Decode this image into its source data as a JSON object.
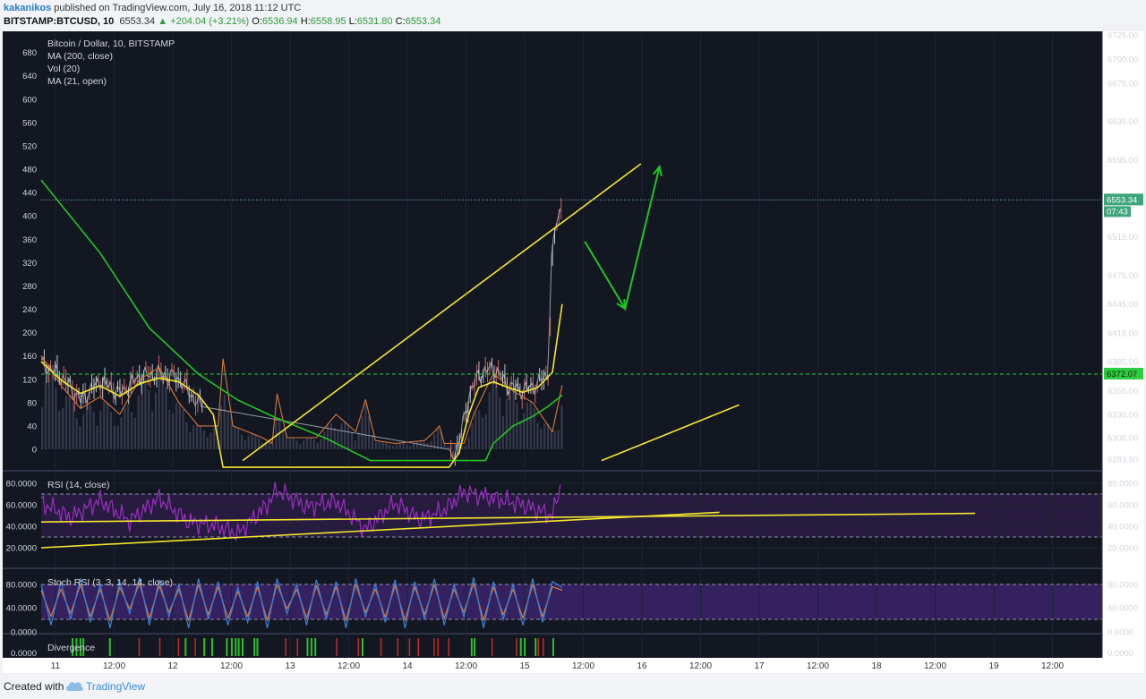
{
  "header": {
    "author": "kakanikos",
    "published_text": "published on TradingView.com, July 16, 2018 11:12 UTC",
    "symbol": "BITSTAMP:BTCUSD, 10",
    "price": "6553.34",
    "change": "▲ +204.04 (+3.21%)",
    "o_label": "O:",
    "o_value": "6536.94",
    "h_label": "H:",
    "h_value": "6558.95",
    "l_label": "L:",
    "l_value": "6531.80",
    "c_label": "C:",
    "c_value": "6553.34"
  },
  "legend": {
    "title": "Bitcoin / Dollar, 10, BITSTAMP",
    "ma200": "MA (200, close)",
    "vol": "Vol (20)",
    "ma21": "MA (21, open)"
  },
  "panes": {
    "rsi_label": "RSI (14, close)",
    "stoch_label": "Stoch RSI (3, 3, 14, 14, close)",
    "divergence_label": "Divergence"
  },
  "footer": {
    "created": "Created with",
    "brand": "TradingView"
  },
  "colors": {
    "background": "#131722",
    "yellow": "#f5e72c",
    "green": "#21c521",
    "orange": "#d6793a",
    "purple": "#9b2fc0",
    "blue": "#3a7fd0",
    "price_tag": "#3da57a",
    "level_tag": "#2ecc40"
  },
  "chart_data": [
    {
      "type": "line",
      "title": "Bitcoin / Dollar, 10, BITSTAMP",
      "x_ticks": [
        "11",
        "12:00",
        "12",
        "12:00",
        "13",
        "12:00",
        "14",
        "12:00",
        "15",
        "12:00",
        "16",
        "12:00",
        "17",
        "12:00",
        "18",
        "12:00",
        "19",
        "12:00"
      ],
      "price_axis_ticks": [
        "6725.00",
        "6700.00",
        "6675.00",
        "6635.00",
        "6595.00",
        "6555.00",
        "6515.00",
        "6475.00",
        "6445.00",
        "6415.00",
        "6385.00",
        "6355.00",
        "6330.00",
        "6306.00",
        "6283.50"
      ],
      "volume_axis_ticks": [
        "680",
        "640",
        "600",
        "560",
        "520",
        "480",
        "440",
        "400",
        "360",
        "320",
        "280",
        "240",
        "200",
        "160",
        "120",
        "80",
        "40",
        "0"
      ],
      "last_price_label": "6553.34",
      "countdown_label": "07:43",
      "level_label": "6372.07",
      "series": [
        {
          "name": "MA (200, close)",
          "color": "#21c521",
          "points": [
            [
              0,
              6574
            ],
            [
              6,
              6498
            ],
            [
              11,
              6420
            ],
            [
              16,
              6372
            ],
            [
              20,
              6345
            ],
            [
              24,
              6326
            ],
            [
              29,
              6305
            ],
            [
              33.5,
              6282
            ],
            [
              45.2,
              6282
            ],
            [
              46,
              6300
            ],
            [
              48,
              6318
            ],
            [
              50,
              6328
            ],
            [
              51.5,
              6338
            ],
            [
              53,
              6350
            ]
          ]
        },
        {
          "name": "MA (21, open)",
          "color": "#f5e72c",
          "points": [
            [
              0,
              6385
            ],
            [
              2,
              6366
            ],
            [
              4,
              6352
            ],
            [
              6,
              6360
            ],
            [
              8,
              6349
            ],
            [
              10,
              6362
            ],
            [
              12,
              6368
            ],
            [
              14,
              6364
            ],
            [
              16,
              6350
            ],
            [
              17.5,
              6330
            ],
            [
              18.5,
              6275
            ],
            [
              41.5,
              6275
            ],
            [
              42.5,
              6290
            ],
            [
              43.5,
              6330
            ],
            [
              44.5,
              6358
            ],
            [
              46,
              6364
            ],
            [
              47.5,
              6358
            ],
            [
              49,
              6353
            ],
            [
              50.5,
              6358
            ],
            [
              52,
              6374
            ],
            [
              53,
              6445
            ]
          ]
        },
        {
          "name": "Vol (20)",
          "color": "#d6793a",
          "points": [
            [
              0,
              160
            ],
            [
              2,
              110
            ],
            [
              4,
              70
            ],
            [
              6,
              90
            ],
            [
              8,
              60
            ],
            [
              10,
              120
            ],
            [
              12,
              140
            ],
            [
              14,
              80
            ],
            [
              16,
              40
            ],
            [
              18,
              40
            ],
            [
              18.5,
              155
            ],
            [
              19.5,
              40
            ],
            [
              21,
              30
            ],
            [
              22.5,
              20
            ],
            [
              23.5,
              10
            ],
            [
              24,
              95
            ],
            [
              25,
              20
            ],
            [
              28,
              20
            ],
            [
              30,
              60
            ],
            [
              32,
              30
            ],
            [
              33,
              85
            ],
            [
              34,
              15
            ],
            [
              36,
              10
            ],
            [
              39,
              15
            ],
            [
              40,
              30
            ],
            [
              40.5,
              40
            ],
            [
              41,
              10
            ],
            [
              43,
              10
            ],
            [
              44,
              60
            ],
            [
              46,
              130
            ],
            [
              48,
              100
            ],
            [
              50,
              80
            ],
            [
              52,
              30
            ],
            [
              53,
              110
            ]
          ]
        },
        {
          "name": "Candles (close)",
          "color": "#dddddd",
          "points": [
            [
              0,
              6383
            ],
            [
              2,
              6370
            ],
            [
              4,
              6345
            ],
            [
              6,
              6365
            ],
            [
              8,
              6352
            ],
            [
              10,
              6370
            ],
            [
              12,
              6372
            ],
            [
              14,
              6368
            ],
            [
              16,
              6340
            ],
            [
              41.5,
              6283
            ],
            [
              42.5,
              6300
            ],
            [
              43.5,
              6350
            ],
            [
              44.5,
              6372
            ],
            [
              46,
              6378
            ],
            [
              47.5,
              6360
            ],
            [
              49,
              6355
            ],
            [
              50.5,
              6362
            ],
            [
              51.5,
              6372
            ],
            [
              52,
              6510
            ],
            [
              53,
              6553
            ]
          ]
        },
        {
          "name": "RSI (14, close)",
          "color": "#9b2fc0",
          "y_axis": [
            "80.0000",
            "60.0000",
            "40.0000",
            "20.0000"
          ],
          "points": [
            [
              0,
              62
            ],
            [
              3,
              48
            ],
            [
              6,
              64
            ],
            [
              9,
              45
            ],
            [
              12,
              66
            ],
            [
              15,
              44
            ],
            [
              18,
              40
            ],
            [
              20,
              33
            ],
            [
              23,
              60
            ],
            [
              24,
              74
            ],
            [
              27,
              58
            ],
            [
              30,
              63
            ],
            [
              33,
              37
            ],
            [
              36,
              62
            ],
            [
              38.5,
              46
            ],
            [
              41,
              55
            ],
            [
              43,
              72
            ],
            [
              46,
              66
            ],
            [
              49,
              60
            ],
            [
              52,
              50
            ],
            [
              53,
              83
            ]
          ]
        },
        {
          "name": "Stoch RSI %K",
          "color": "#3a7fd0",
          "y_axis": [
            "80.0000",
            "40.0000",
            "0.0000"
          ],
          "points": [
            [
              0,
              80
            ],
            [
              1,
              10
            ],
            [
              2,
              85
            ],
            [
              3,
              20
            ],
            [
              4,
              90
            ],
            [
              5,
              15
            ],
            [
              6,
              80
            ],
            [
              7,
              5
            ],
            [
              8,
              85
            ],
            [
              9,
              30
            ],
            [
              10,
              92
            ],
            [
              11,
              10
            ],
            [
              12,
              88
            ],
            [
              13,
              25
            ],
            [
              14,
              80
            ],
            [
              15,
              5
            ],
            [
              16,
              90
            ],
            [
              17,
              20
            ],
            [
              18,
              85
            ],
            [
              19,
              10
            ],
            [
              20,
              75
            ],
            [
              21,
              15
            ],
            [
              22,
              85
            ],
            [
              23,
              5
            ],
            [
              24,
              90
            ],
            [
              25,
              30
            ],
            [
              26,
              80
            ],
            [
              27,
              10
            ],
            [
              28,
              88
            ],
            [
              29,
              20
            ],
            [
              30,
              85
            ],
            [
              31,
              5
            ],
            [
              32,
              90
            ],
            [
              33,
              25
            ],
            [
              34,
              80
            ],
            [
              35,
              15
            ],
            [
              36,
              88
            ],
            [
              37,
              5
            ],
            [
              38,
              85
            ],
            [
              39,
              20
            ],
            [
              40,
              90
            ],
            [
              41,
              10
            ],
            [
              42,
              80
            ],
            [
              43,
              25
            ],
            [
              44,
              92
            ],
            [
              45,
              5
            ],
            [
              46,
              85
            ],
            [
              47,
              20
            ],
            [
              48,
              80
            ],
            [
              49,
              10
            ],
            [
              50,
              90
            ],
            [
              51,
              15
            ],
            [
              52,
              85
            ],
            [
              53,
              75
            ]
          ]
        },
        {
          "name": "Stoch RSI %D",
          "color": "#d6793a",
          "points": [
            [
              0,
              70
            ],
            [
              1,
              25
            ],
            [
              2,
              72
            ],
            [
              3,
              30
            ],
            [
              4,
              80
            ],
            [
              5,
              25
            ],
            [
              6,
              72
            ],
            [
              7,
              18
            ],
            [
              8,
              75
            ],
            [
              9,
              38
            ],
            [
              10,
              82
            ],
            [
              11,
              22
            ],
            [
              12,
              78
            ],
            [
              13,
              32
            ],
            [
              14,
              72
            ],
            [
              15,
              18
            ],
            [
              16,
              80
            ],
            [
              17,
              28
            ],
            [
              18,
              76
            ],
            [
              19,
              22
            ],
            [
              20,
              68
            ],
            [
              21,
              25
            ],
            [
              22,
              76
            ],
            [
              23,
              18
            ],
            [
              24,
              80
            ],
            [
              25,
              38
            ],
            [
              26,
              72
            ],
            [
              27,
              22
            ],
            [
              28,
              78
            ],
            [
              29,
              28
            ],
            [
              30,
              76
            ],
            [
              31,
              18
            ],
            [
              32,
              80
            ],
            [
              33,
              32
            ],
            [
              34,
              72
            ],
            [
              35,
              24
            ],
            [
              36,
              78
            ],
            [
              37,
              18
            ],
            [
              38,
              76
            ],
            [
              39,
              28
            ],
            [
              40,
              80
            ],
            [
              41,
              22
            ],
            [
              42,
              72
            ],
            [
              43,
              32
            ],
            [
              44,
              82
            ],
            [
              45,
              18
            ],
            [
              46,
              76
            ],
            [
              47,
              28
            ],
            [
              48,
              72
            ],
            [
              49,
              22
            ],
            [
              50,
              80
            ],
            [
              51,
              25
            ],
            [
              52,
              76
            ],
            [
              53,
              70
            ]
          ]
        }
      ],
      "divergence_markers": {
        "green": [
          3.1,
          3.5,
          3.9,
          4.2,
          6.9,
          14.6,
          16.5,
          17.3,
          18.8,
          19.3,
          19.7,
          20.0,
          20.4,
          21.6,
          21.9,
          27.0,
          27.4,
          27.8,
          32.6,
          43.7,
          44.0,
          48.7,
          49.1,
          50.2,
          52.0
        ],
        "red": [
          9.9,
          12.0,
          13.9,
          15.6,
          24.8,
          26.0,
          30.0,
          32.2,
          34.5,
          36.2,
          37.4,
          38.3,
          39.9,
          40.3,
          41.4,
          45.8,
          48.3,
          50.5,
          51.0
        ]
      },
      "annotations": {
        "resistance_line": [
          [
            20.5,
            6282
          ],
          [
            61,
            6591
          ]
        ],
        "lower_line": [
          [
            57,
            6282
          ],
          [
            71,
            6340
          ]
        ],
        "rsi_trendline_1": [
          [
            0,
            44
          ],
          [
            95,
            52
          ]
        ],
        "rsi_trendline_2": [
          [
            0,
            20
          ],
          [
            69,
            53
          ]
        ],
        "projection_arrow": [
          [
            55.3,
            6510
          ],
          [
            59.4,
            6440
          ],
          [
            62.9,
            6588
          ]
        ]
      }
    }
  ]
}
